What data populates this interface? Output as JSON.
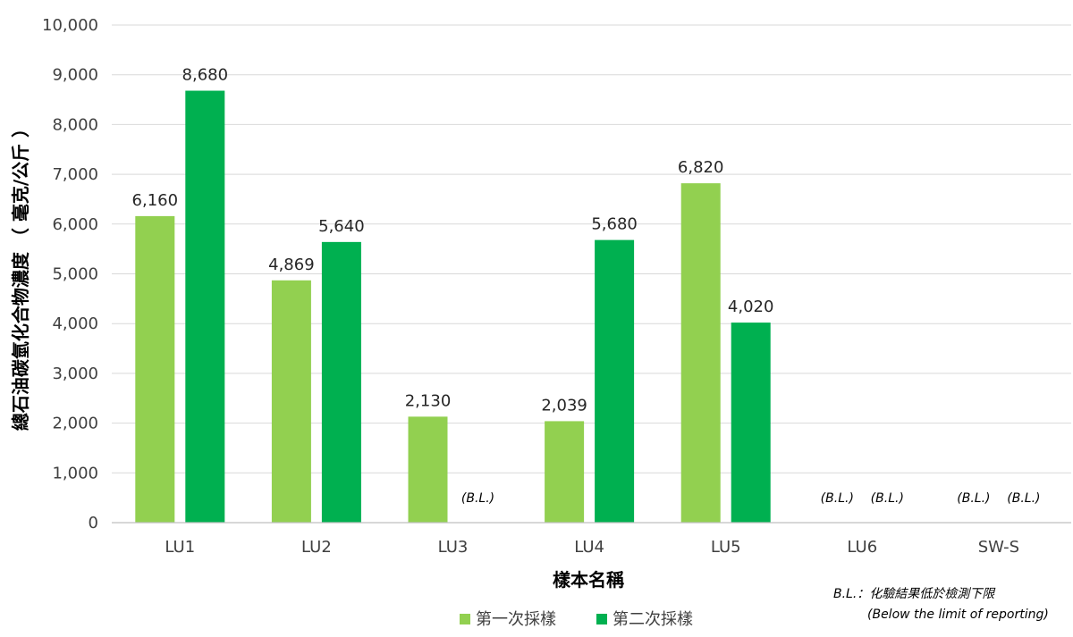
{
  "chart_data": {
    "type": "bar",
    "categories": [
      "LU1",
      "LU2",
      "LU3",
      "LU4",
      "LU5",
      "LU6",
      "SW-S"
    ],
    "series": [
      {
        "name": "第一次採樣",
        "color": "#92D050",
        "values": [
          6160,
          4869,
          2130,
          2039,
          6820,
          null,
          null
        ],
        "labels": [
          "6,160",
          "4,869",
          "2,130",
          "2,039",
          "6,820",
          "(B.L.)",
          "(B.L.)"
        ]
      },
      {
        "name": "第二次採樣",
        "color": "#00B050",
        "values": [
          8680,
          5640,
          null,
          5680,
          4020,
          null,
          null
        ],
        "labels": [
          "8,680",
          "5,640",
          "(B.L.)",
          "5,680",
          "4,020",
          "(B.L.)",
          "(B.L.)"
        ]
      }
    ],
    "ylim": [
      0,
      10000
    ],
    "yticks": [
      0,
      1000,
      2000,
      3000,
      4000,
      5000,
      6000,
      7000,
      8000,
      9000,
      10000
    ],
    "ytick_labels": [
      "0",
      "1,000",
      "2,000",
      "3,000",
      "4,000",
      "5,000",
      "6,000",
      "7,000",
      "8,000",
      "9,000",
      "10,000"
    ],
    "xlabel": "樣本名稱",
    "ylabel": "總石油碳氫化合物濃度 （ 毫克/公斤 ）",
    "grid": true,
    "legend_position": "bottom-center",
    "note_line1": "B.L.：化驗結果低於檢測下限",
    "note_line2": "(Below the limit of reporting)"
  }
}
